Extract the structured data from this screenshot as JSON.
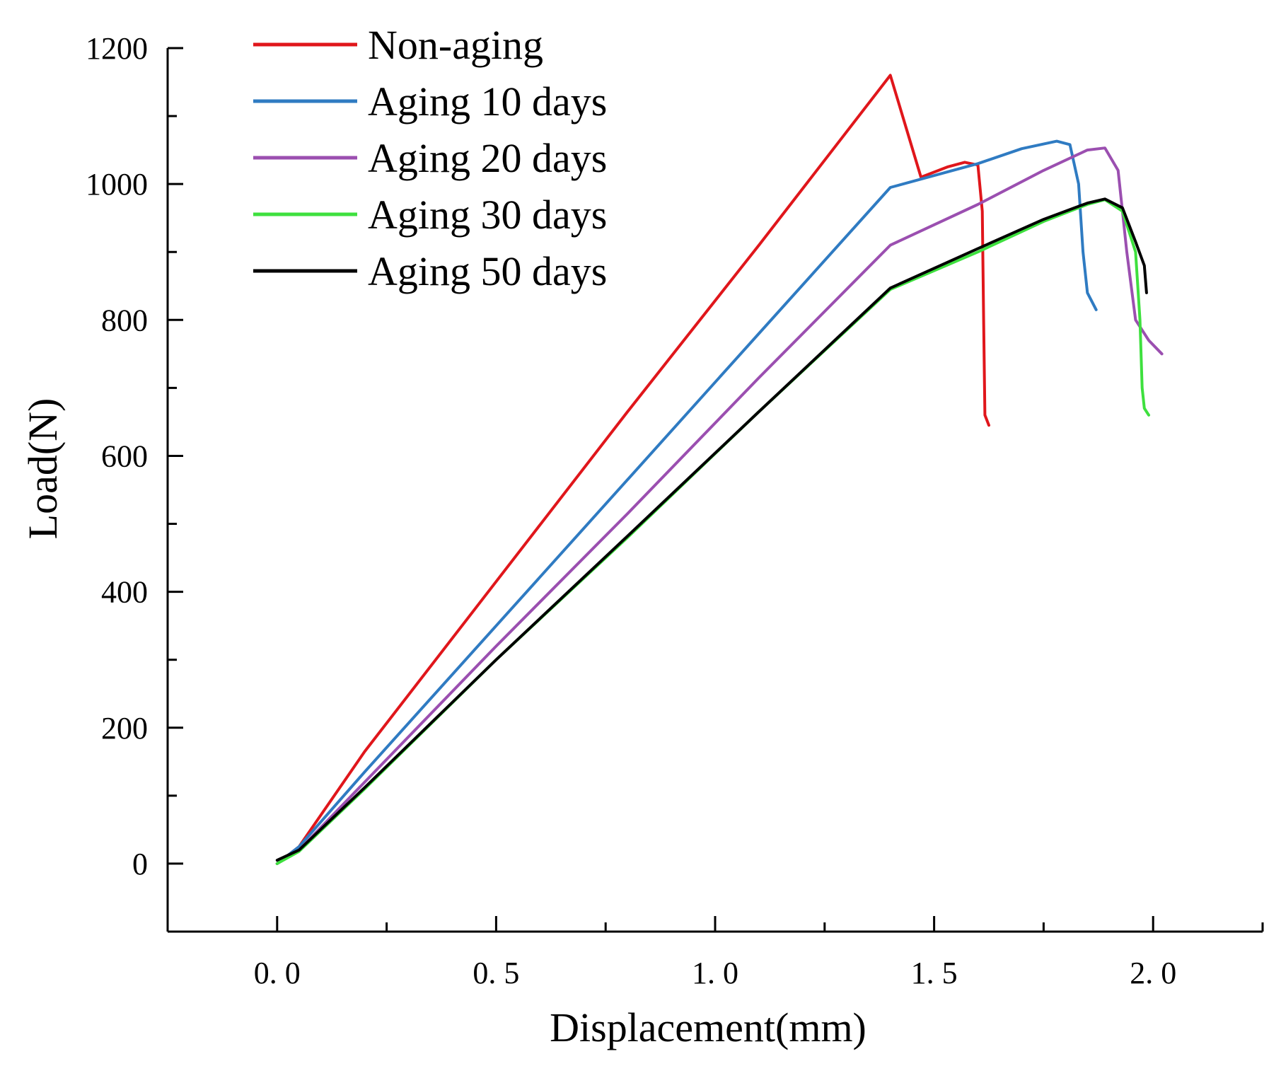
{
  "chart_data": {
    "type": "line",
    "title": "",
    "xlabel": "Displacement(mm)",
    "ylabel": "Load(N)",
    "xlim": [
      -0.25,
      2.25
    ],
    "ylim": [
      -100,
      1200
    ],
    "xticks": [
      {
        "value": 0.0,
        "label": "0. 0"
      },
      {
        "value": 0.5,
        "label": "0. 5"
      },
      {
        "value": 1.0,
        "label": "1. 0"
      },
      {
        "value": 1.5,
        "label": "1. 5"
      },
      {
        "value": 2.0,
        "label": "2. 0"
      }
    ],
    "yticks": [
      {
        "value": 0,
        "label": "0"
      },
      {
        "value": 200,
        "label": "200"
      },
      {
        "value": 400,
        "label": "400"
      },
      {
        "value": 600,
        "label": "600"
      },
      {
        "value": 800,
        "label": "800"
      },
      {
        "value": 1000,
        "label": "1000"
      },
      {
        "value": 1200,
        "label": "1200"
      }
    ],
    "grid": false,
    "legend_position": "top-left",
    "series": [
      {
        "name": "Non-aging",
        "color": "#e0161b",
        "points": [
          [
            0,
            0
          ],
          [
            0.05,
            25
          ],
          [
            0.2,
            165
          ],
          [
            0.5,
            415
          ],
          [
            0.8,
            665
          ],
          [
            1.1,
            910
          ],
          [
            1.4,
            1160
          ],
          [
            1.47,
            1010
          ],
          [
            1.53,
            1025
          ],
          [
            1.57,
            1032
          ],
          [
            1.6,
            1028
          ],
          [
            1.61,
            960
          ],
          [
            1.613,
            800
          ],
          [
            1.616,
            660
          ],
          [
            1.625,
            645
          ]
        ]
      },
      {
        "name": "Aging 10 days",
        "color": "#2f7bc2",
        "points": [
          [
            0,
            0
          ],
          [
            0.05,
            25
          ],
          [
            0.2,
            135
          ],
          [
            0.5,
            350
          ],
          [
            0.8,
            565
          ],
          [
            1.1,
            780
          ],
          [
            1.4,
            995
          ],
          [
            1.6,
            1030
          ],
          [
            1.7,
            1052
          ],
          [
            1.78,
            1063
          ],
          [
            1.81,
            1058
          ],
          [
            1.83,
            1000
          ],
          [
            1.84,
            900
          ],
          [
            1.85,
            840
          ],
          [
            1.87,
            815
          ]
        ]
      },
      {
        "name": "Aging 20 days",
        "color": "#9b4fb0",
        "points": [
          [
            0,
            0
          ],
          [
            0.05,
            20
          ],
          [
            0.2,
            120
          ],
          [
            0.5,
            320
          ],
          [
            0.8,
            515
          ],
          [
            1.1,
            715
          ],
          [
            1.4,
            910
          ],
          [
            1.6,
            970
          ],
          [
            1.75,
            1020
          ],
          [
            1.85,
            1050
          ],
          [
            1.89,
            1053
          ],
          [
            1.92,
            1020
          ],
          [
            1.94,
            900
          ],
          [
            1.96,
            800
          ],
          [
            1.99,
            770
          ],
          [
            2.02,
            750
          ]
        ]
      },
      {
        "name": "Aging 30 days",
        "color": "#3ee03e",
        "points": [
          [
            0,
            0
          ],
          [
            0.05,
            18
          ],
          [
            0.2,
            110
          ],
          [
            0.5,
            300
          ],
          [
            0.8,
            480
          ],
          [
            1.1,
            665
          ],
          [
            1.4,
            845
          ],
          [
            1.6,
            900
          ],
          [
            1.75,
            945
          ],
          [
            1.85,
            970
          ],
          [
            1.89,
            977
          ],
          [
            1.93,
            960
          ],
          [
            1.96,
            900
          ],
          [
            1.97,
            800
          ],
          [
            1.975,
            700
          ],
          [
            1.98,
            670
          ],
          [
            1.99,
            660
          ]
        ]
      },
      {
        "name": "Aging 50 days",
        "color": "#000000",
        "points": [
          [
            0,
            5
          ],
          [
            0.05,
            20
          ],
          [
            0.2,
            112
          ],
          [
            0.5,
            300
          ],
          [
            0.8,
            482
          ],
          [
            1.1,
            665
          ],
          [
            1.4,
            847
          ],
          [
            1.6,
            905
          ],
          [
            1.75,
            948
          ],
          [
            1.85,
            972
          ],
          [
            1.89,
            978
          ],
          [
            1.93,
            965
          ],
          [
            1.96,
            915
          ],
          [
            1.98,
            880
          ],
          [
            1.985,
            840
          ]
        ]
      }
    ]
  }
}
